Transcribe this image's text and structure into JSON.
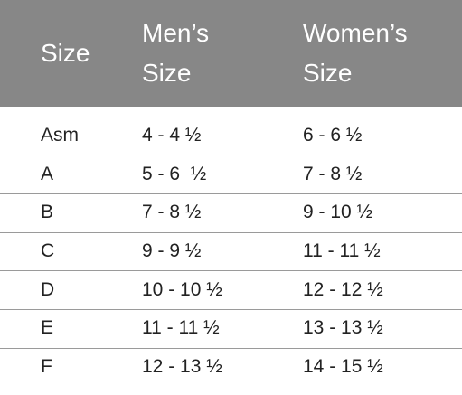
{
  "table": {
    "header": [
      "Size",
      "Men’s Size",
      "Women’s Size"
    ],
    "rows": [
      [
        "Asm",
        "4 - 4 ½",
        "6 - 6 ½"
      ],
      [
        "A",
        "5 - 6  ½",
        "7 - 8 ½"
      ],
      [
        "B",
        "7 - 8 ½",
        "9 - 10 ½"
      ],
      [
        "C",
        "9 - 9 ½",
        "11 - 11 ½"
      ],
      [
        "D",
        "10 - 10 ½",
        "12 - 12 ½"
      ],
      [
        "E",
        "11 - 11 ½",
        "13 - 13 ½"
      ],
      [
        "F",
        "12 - 13 ½",
        "14 - 15 ½"
      ]
    ]
  }
}
